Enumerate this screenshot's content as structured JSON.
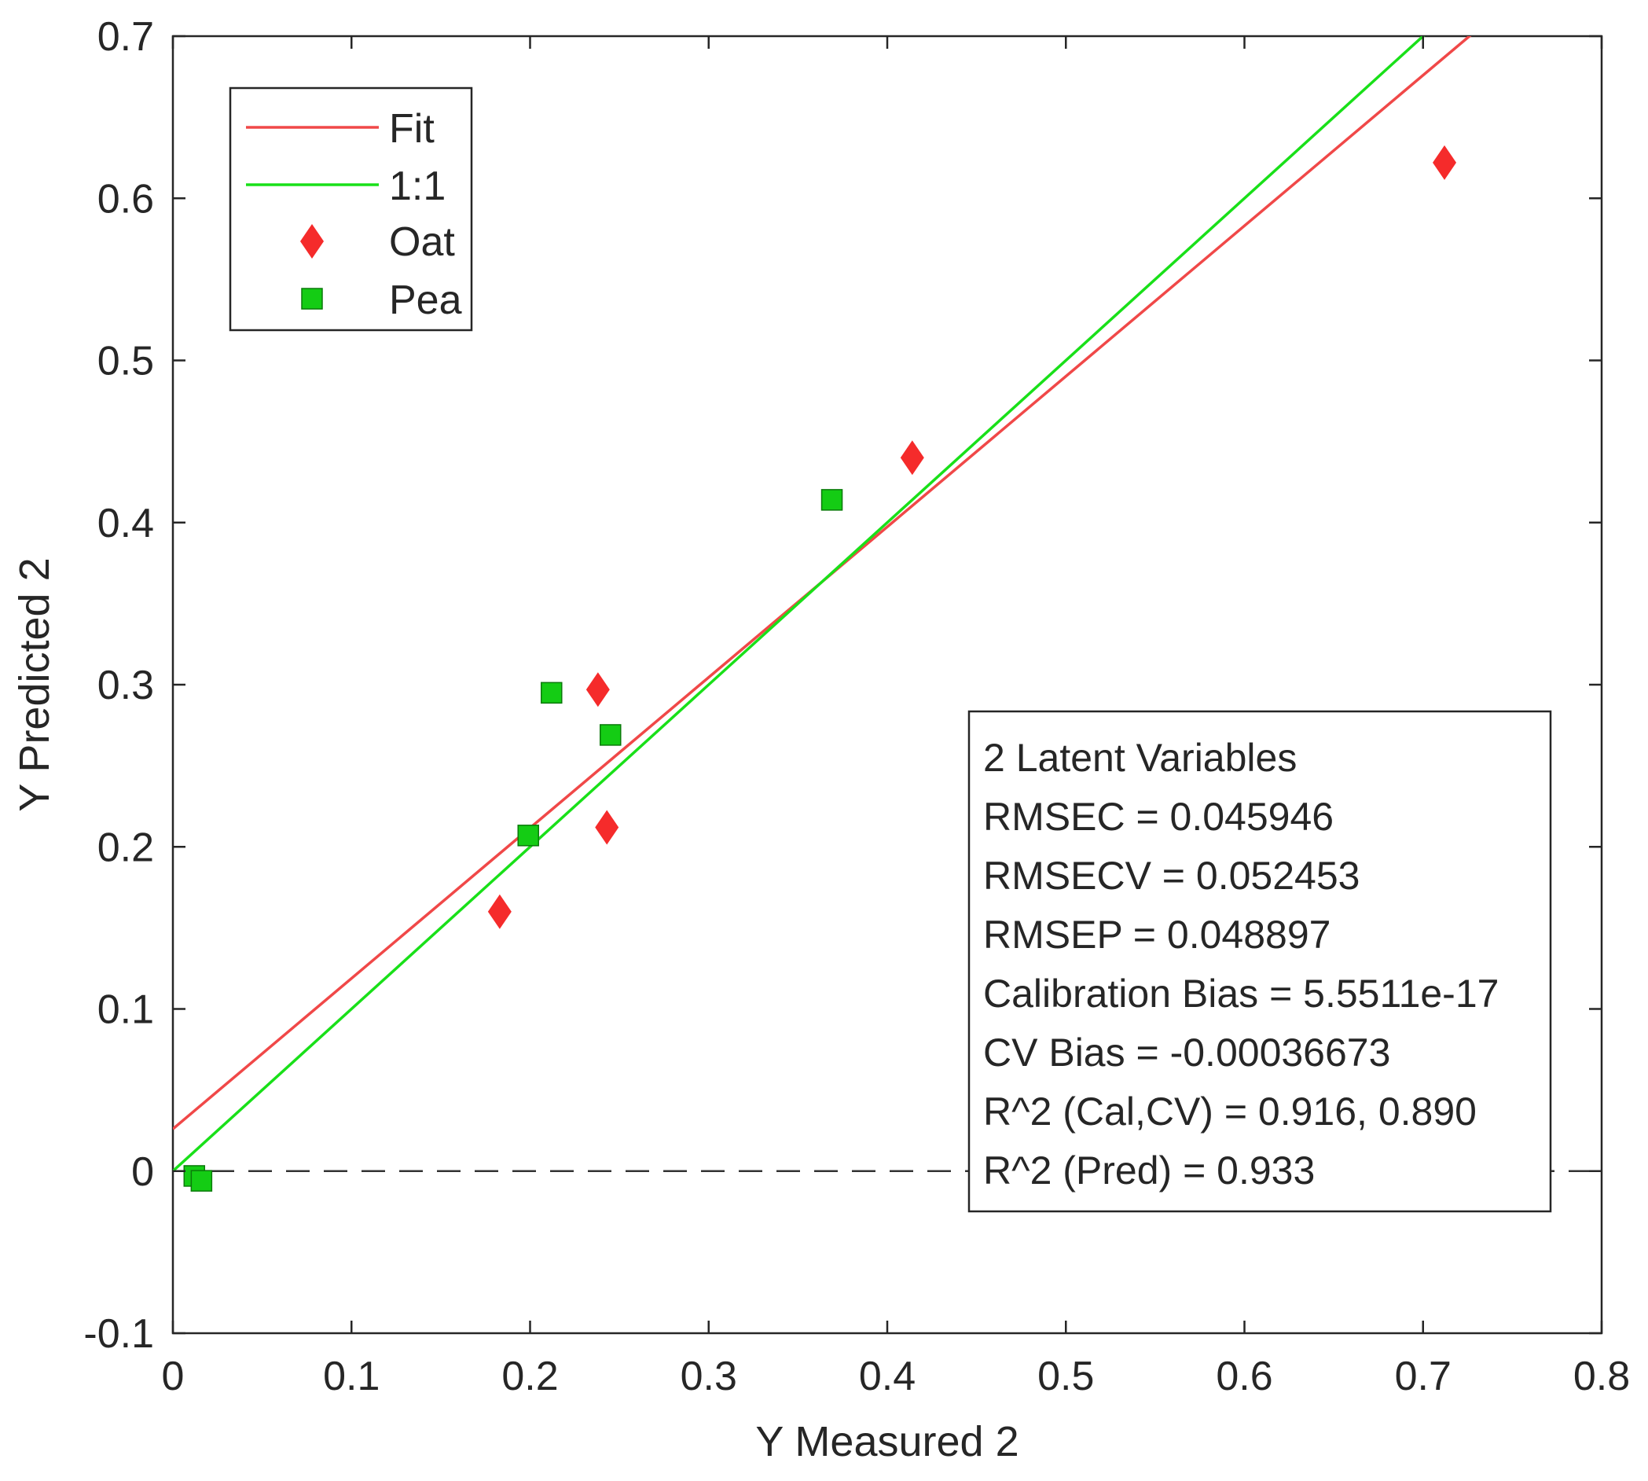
{
  "chart_data": {
    "type": "scatter",
    "title": "",
    "xlabel": "Y Measured 2",
    "ylabel": "Y Predicted 2",
    "xlim": [
      0,
      0.8
    ],
    "ylim": [
      -0.1,
      0.7
    ],
    "xticks": [
      0,
      0.1,
      0.2,
      0.3,
      0.4,
      0.5,
      0.6,
      0.7,
      0.8
    ],
    "xtick_labels": [
      "0",
      "0.1",
      "0.2",
      "0.3",
      "0.4",
      "0.5",
      "0.6",
      "0.7",
      "0.8"
    ],
    "yticks": [
      -0.1,
      0,
      0.1,
      0.2,
      0.3,
      0.4,
      0.5,
      0.6,
      0.7
    ],
    "ytick_labels": [
      "-0.1",
      "0",
      "0.1",
      "0.2",
      "0.3",
      "0.4",
      "0.5",
      "0.6",
      "0.7"
    ],
    "grid": false,
    "zero_line": {
      "y": 0,
      "style": "dashed",
      "color": "#333333"
    },
    "lines": [
      {
        "name": "Fit",
        "color": "#f04848",
        "intercept": 0.026,
        "slope": 0.9284
      },
      {
        "name": "1:1",
        "color": "#19e019",
        "intercept": 0,
        "slope": 1
      }
    ],
    "series": [
      {
        "name": "Oat",
        "marker": "diamond",
        "color": "#f52b2b",
        "points": [
          {
            "x": 0.183,
            "y": 0.16
          },
          {
            "x": 0.238,
            "y": 0.297
          },
          {
            "x": 0.243,
            "y": 0.212
          },
          {
            "x": 0.414,
            "y": 0.44
          },
          {
            "x": 0.712,
            "y": 0.622
          }
        ]
      },
      {
        "name": "Pea",
        "marker": "square",
        "color": "#14cc14",
        "points": [
          {
            "x": 0.012,
            "y": -0.003
          },
          {
            "x": 0.016,
            "y": -0.006
          },
          {
            "x": 0.199,
            "y": 0.207
          },
          {
            "x": 0.212,
            "y": 0.295
          },
          {
            "x": 0.245,
            "y": 0.269
          },
          {
            "x": 0.369,
            "y": 0.414
          }
        ]
      }
    ],
    "legend": {
      "position": "top-left",
      "entries": [
        "Fit",
        "1:1",
        "Oat",
        "Pea"
      ]
    },
    "annotation": {
      "position": "bottom-right",
      "lines": [
        "2 Latent Variables",
        "RMSEC = 0.045946",
        "RMSECV = 0.052453",
        "RMSEP = 0.048897",
        "Calibration Bias = 5.5511e-17",
        "CV Bias = -0.00036673",
        "R^2 (Cal,CV) = 0.916, 0.890",
        "R^2 (Pred) = 0.933"
      ]
    }
  }
}
